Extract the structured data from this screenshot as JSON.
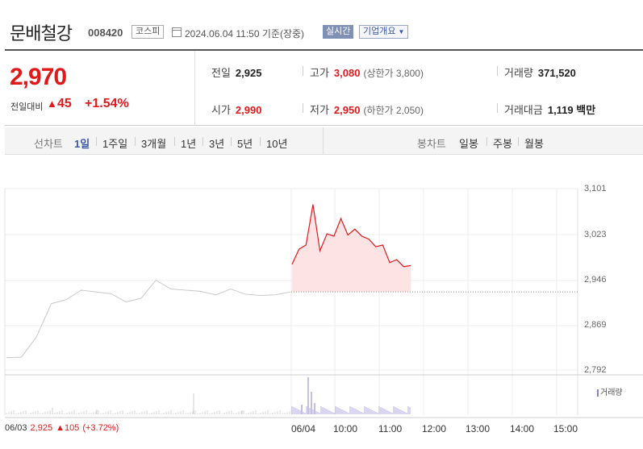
{
  "header": {
    "name": "문배철강",
    "code": "008420",
    "market": "코스피",
    "as_of": "2024.06.04 11:50  기준(장중)",
    "realtime_label": "실시간",
    "corp_label": "기업개요"
  },
  "summary": {
    "price": "2,970",
    "change_label": "전일대비",
    "change_arrow": "▲",
    "change_value": "45",
    "change_pct": "+1.54%",
    "prev_close_label": "전일",
    "prev_close": "2,925",
    "open_label": "시가",
    "open": "2,990",
    "high_label": "고가",
    "high": "3,080",
    "upper_limit": "(상한가 3,800)",
    "low_label": "저가",
    "low": "2,950",
    "lower_limit": "(하한가 2,050)",
    "volume_label": "거래량",
    "volume": "371,520",
    "amount_label": "거래대금",
    "amount": "1,119 백만"
  },
  "toolbar": {
    "line_label": "선차트",
    "line_ranges": [
      "1일",
      "1주일",
      "3개월",
      "1년",
      "3년",
      "5년",
      "10년"
    ],
    "active_range": "1일",
    "candle_label": "봉차트",
    "candle_ranges": [
      "일봉",
      "주봉",
      "월봉"
    ]
  },
  "chart_data": {
    "type": "line",
    "y_ticks": [
      "3,101",
      "3,023",
      "2,946",
      "2,869",
      "2,792"
    ],
    "ylim": [
      2792,
      3101
    ],
    "x_ticks": [
      "06/04",
      "10:00",
      "11:00",
      "12:00",
      "13:00",
      "14:00",
      "15:00"
    ],
    "prev_close_line": 2925,
    "series": [
      {
        "x": [
          "06/03 09:00",
          "09:20",
          "09:40",
          "10:00",
          "10:20",
          "10:40",
          "11:00",
          "11:20",
          "11:40",
          "12:00",
          "12:20",
          "12:40",
          "13:00",
          "13:20",
          "13:40",
          "14:00",
          "14:20",
          "14:40",
          "15:00",
          "15:20"
        ],
        "values": [
          2813,
          2814,
          2848,
          2905,
          2912,
          2928,
          2925,
          2922,
          2908,
          2914,
          2945,
          2930,
          2928,
          2926,
          2920,
          2930,
          2921,
          2919,
          2920,
          2925
        ]
      },
      {
        "x": [
          "09:00",
          "09:10",
          "09:20",
          "09:30",
          "09:40",
          "09:50",
          "10:00",
          "10:10",
          "10:20",
          "10:30",
          "10:40",
          "10:50",
          "11:00",
          "11:10",
          "11:20",
          "11:30",
          "11:40",
          "11:50"
        ],
        "values": [
          2972,
          2998,
          3005,
          3074,
          2995,
          3024,
          3020,
          3050,
          3022,
          3032,
          3020,
          3015,
          3002,
          3005,
          2975,
          2980,
          2968,
          2970
        ]
      }
    ],
    "volume_label": "거래량",
    "prev_day": {
      "date": "06/03",
      "price": "2,925",
      "change": "▲105",
      "pct": "(+3.72%)"
    }
  },
  "colors": {
    "up": "#e01a1a",
    "accent": "#3b58a5",
    "prev_line": "#cccccc"
  }
}
